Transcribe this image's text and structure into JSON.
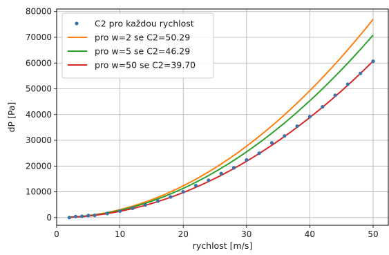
{
  "chart_data": {
    "type": "line",
    "xlabel": "rychlost [m/s]",
    "ylabel": "dP [Pa]",
    "xlim": [
      0,
      52.4
    ],
    "ylim": [
      -3000,
      81000
    ],
    "x_ticks": [
      0,
      10,
      20,
      30,
      40,
      50
    ],
    "y_ticks": [
      0,
      10000,
      20000,
      30000,
      40000,
      50000,
      60000,
      70000,
      80000
    ],
    "grid": true,
    "legend_position": "upper-left",
    "colors": {
      "points": "#3b73a8",
      "w2": "#ff7f0e",
      "w5": "#2ca02c",
      "w50": "#d62728"
    },
    "series": [
      {
        "name": "C2 pro každou rychlost",
        "type": "scatter",
        "color_key": "points",
        "x": [
          2,
          3,
          4,
          5,
          6,
          8,
          10,
          12,
          14,
          16,
          18,
          20,
          22,
          24,
          26,
          28,
          30,
          32,
          34,
          36,
          38,
          40,
          42,
          44,
          46,
          48,
          50
        ],
        "y": [
          0,
          400,
          500,
          800,
          850,
          1600,
          2500,
          3600,
          4900,
          6400,
          8000,
          10000,
          12400,
          14500,
          17100,
          19300,
          22400,
          25000,
          29000,
          31700,
          35500,
          39200,
          43000,
          47500,
          51800,
          56000,
          60700
        ]
      },
      {
        "name": "pro w=2 se C2=50.29",
        "type": "line",
        "color_key": "w2",
        "x_range": [
          2,
          50
        ],
        "coef": 30.8
      },
      {
        "name": "pro w=5 se C2=46.29",
        "type": "line",
        "color_key": "w5",
        "x_range": [
          2,
          50
        ],
        "coef": 28.35
      },
      {
        "name": "pro w=50 se C2=39.70",
        "type": "line",
        "color_key": "w50",
        "x_range": [
          2,
          50
        ],
        "coef": 24.3
      }
    ]
  }
}
